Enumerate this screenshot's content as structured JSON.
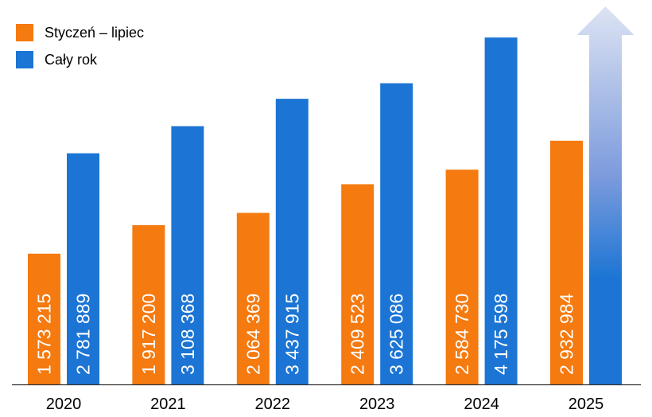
{
  "chart_data": {
    "type": "bar",
    "title": "",
    "xlabel": "",
    "ylabel": "",
    "categories": [
      "2020",
      "2021",
      "2022",
      "2023",
      "2024",
      "2025"
    ],
    "series": [
      {
        "name": "Styczeń – lipiec",
        "color": "#F57A0F",
        "values": [
          1573215,
          1917200,
          2064369,
          2409523,
          2584730,
          2932984
        ],
        "labels": [
          "1 573 215",
          "1 917 200",
          "2 064 369",
          "2 409 523",
          "2 584 730",
          "2 932 984"
        ]
      },
      {
        "name": "Cały rok",
        "color": "#1C75D4",
        "values": [
          2781889,
          3108368,
          3437915,
          3625086,
          4175598,
          null
        ],
        "labels": [
          "2 781 889",
          "3 108 368",
          "3 437 915",
          "3 625 086",
          "4 175 598",
          ""
        ]
      }
    ],
    "ylim": [
      0,
      4600000
    ],
    "grid": false,
    "legend_position": "top-left",
    "annotation": "2025 full-year bar drawn as an upward gradient arrow (value not shown)"
  }
}
